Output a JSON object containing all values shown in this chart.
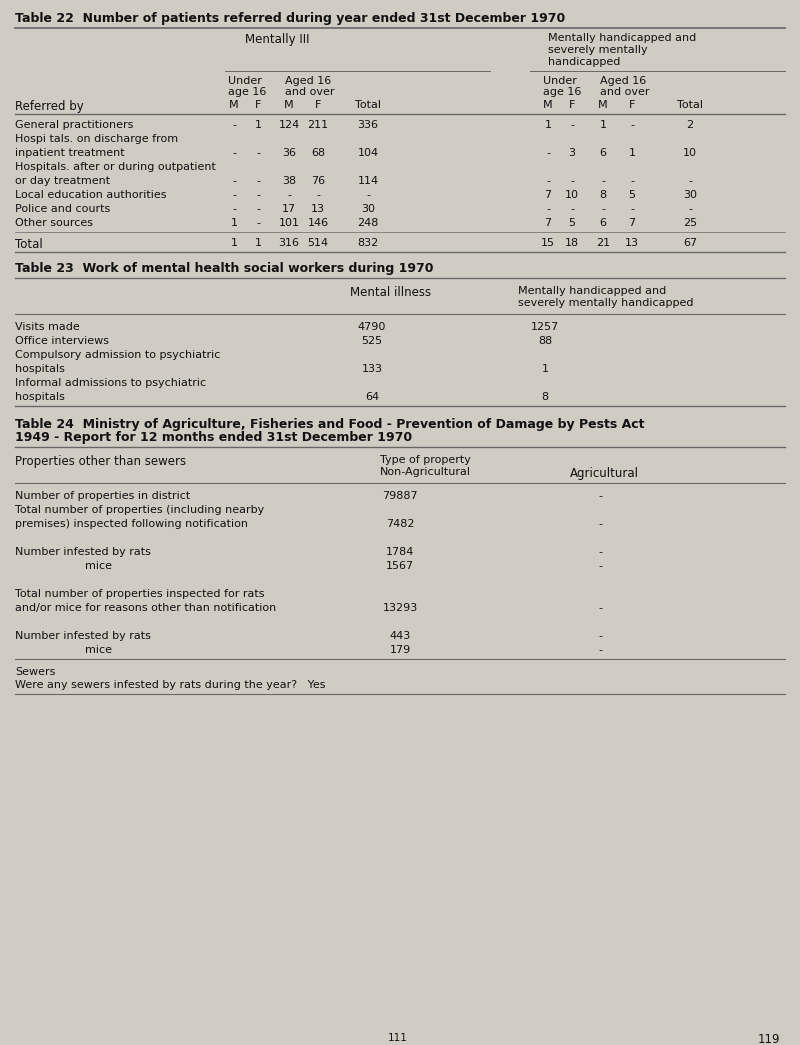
{
  "bg_color": "#d0ccc4",
  "text_color": "#000000",
  "page_number": "119",
  "table22": {
    "title": "Table 22  Number of patients referred during year ended 31st December 1970",
    "col_group1": "Mentally III",
    "col_group2": "Mentally handicapped and\nseverely mentally\nhandicapped",
    "rows": [
      [
        "General practitioners",
        "-",
        "1",
        "124",
        "211",
        "336",
        "1",
        "-",
        "1",
        "-",
        "2"
      ],
      [
        "Hospi tals. on discharge from",
        "",
        "",
        "",
        "",
        "",
        "",
        "",
        "",
        "",
        ""
      ],
      [
        "inpatient treatment",
        "-",
        "-",
        "36",
        "68",
        "104",
        "-",
        "3",
        "6",
        "1",
        "10"
      ],
      [
        "Hospitals. after or during outpatient",
        "",
        "",
        "",
        "",
        "",
        "",
        "",
        "",
        "",
        ""
      ],
      [
        "or day treatment",
        "-",
        "-",
        "38",
        "76",
        "114",
        "-",
        "-",
        "-",
        "-",
        "-"
      ],
      [
        "Local education authorities",
        "-",
        "-",
        "-",
        "-",
        "-",
        "7",
        "10",
        "8",
        "5",
        "30"
      ],
      [
        "Police and courts",
        "-",
        "-",
        "17",
        "13",
        "30",
        "-",
        "-",
        "-",
        "-",
        "-"
      ],
      [
        "Other sources",
        "1",
        "-",
        "101",
        "146",
        "248",
        "7",
        "5",
        "6",
        "7",
        "25"
      ]
    ],
    "total_row": [
      "Total",
      "1",
      "1",
      "316",
      "514",
      "832",
      "15",
      "18",
      "21",
      "13",
      "67"
    ]
  },
  "table23": {
    "title": "Table 23  Work of mental health social workers during 1970",
    "col1": "Mental illness",
    "col2": "Mentally handicapped and\nseverely mentally handicapped",
    "rows": [
      [
        "Visits made",
        "4790",
        "1257"
      ],
      [
        "Office interviews",
        "525",
        "88"
      ],
      [
        "Compulsory admission to psychiatric",
        "",
        ""
      ],
      [
        "hospitals",
        "133",
        "1"
      ],
      [
        "Informal admissions to psychiatric",
        "",
        ""
      ],
      [
        "hospitals",
        "64",
        "8"
      ]
    ]
  },
  "table24": {
    "title1": "Table 24  Ministry of Agriculture, Fisheries and Food - Prevention of Damage by Pests Act",
    "title2": "1949 - Report for 12 months ended 31st December 1970",
    "sub_header": "Properties other than sewers",
    "col1a": "Type of property",
    "col1b": "Non-Agricultural",
    "col2": "Agricultural",
    "rows": [
      [
        "Number of properties in district",
        "79887",
        "-"
      ],
      [
        "Total number of properties (including nearby",
        "",
        ""
      ],
      [
        "premises) inspected following notification",
        "7482",
        "-"
      ],
      [
        "",
        "",
        ""
      ],
      [
        "Number infested by rats",
        "1784",
        "-"
      ],
      [
        "                    mice",
        "1567",
        "-"
      ],
      [
        "",
        "",
        ""
      ],
      [
        "Total number of properties inspected for rats",
        "",
        ""
      ],
      [
        "and/or mice for reasons other than notification",
        "13293",
        "-"
      ],
      [
        "",
        "",
        ""
      ],
      [
        "Number infested by rats",
        "443",
        "-"
      ],
      [
        "                    mice",
        "179",
        "-"
      ]
    ],
    "sewers_line1": "Sewers",
    "sewers_line2": "Were any sewers infested by rats during the year?   Yes"
  }
}
